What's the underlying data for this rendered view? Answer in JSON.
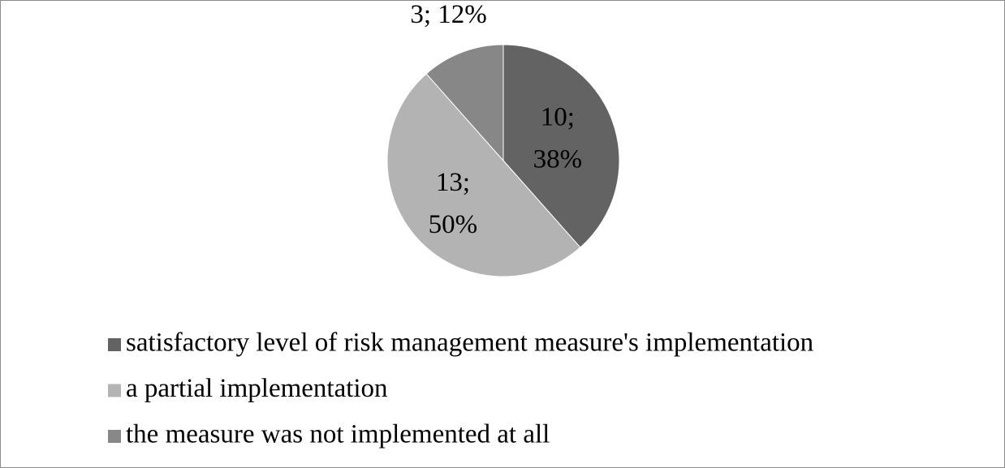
{
  "chart_data": {
    "type": "pie",
    "categories": [
      "satisfactory level of risk management measure's implementation",
      "a partial implementation",
      "the measure was not implemented at all"
    ],
    "values": [
      10,
      13,
      3
    ],
    "value_labels": [
      "10; 38%",
      "13; 50%",
      "3; 12%"
    ],
    "colors": [
      "#636363",
      "#b3b3b3",
      "#878787"
    ],
    "legend": "bottom"
  }
}
